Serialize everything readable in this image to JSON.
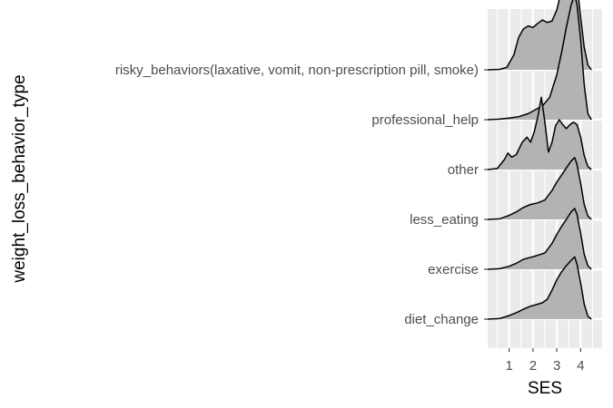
{
  "chart_data": {
    "type": "ridgeline",
    "xlabel": "SES",
    "ylabel": "weight_loss_behavior_type",
    "x_ticks": [
      1,
      2,
      3,
      4
    ],
    "xlim": [
      0.1,
      4.9
    ],
    "grid": true,
    "categories": [
      "diet_change",
      "exercise",
      "less_eating",
      "other",
      "professional_help",
      "risky_behaviors(laxative, vomit, non-prescription pill, smoke)"
    ],
    "series": [
      {
        "category": "diet_change",
        "density": [
          [
            0.1,
            0
          ],
          [
            0.6,
            0.01
          ],
          [
            1.0,
            0.07
          ],
          [
            1.3,
            0.13
          ],
          [
            1.6,
            0.2
          ],
          [
            1.9,
            0.26
          ],
          [
            2.2,
            0.3
          ],
          [
            2.4,
            0.33
          ],
          [
            2.6,
            0.4
          ],
          [
            2.8,
            0.58
          ],
          [
            3.0,
            0.79
          ],
          [
            3.2,
            0.95
          ],
          [
            3.4,
            1.07
          ],
          [
            3.6,
            1.18
          ],
          [
            3.75,
            1.25
          ],
          [
            3.85,
            1.1
          ],
          [
            4.0,
            0.72
          ],
          [
            4.15,
            0.3
          ],
          [
            4.3,
            0.06
          ],
          [
            4.45,
            0
          ]
        ]
      },
      {
        "category": "exercise",
        "density": [
          [
            0.1,
            0
          ],
          [
            0.6,
            0.01
          ],
          [
            1.0,
            0.06
          ],
          [
            1.3,
            0.12
          ],
          [
            1.6,
            0.2
          ],
          [
            1.9,
            0.24
          ],
          [
            2.2,
            0.28
          ],
          [
            2.5,
            0.33
          ],
          [
            2.8,
            0.52
          ],
          [
            3.0,
            0.7
          ],
          [
            3.2,
            0.86
          ],
          [
            3.4,
            1.0
          ],
          [
            3.6,
            1.15
          ],
          [
            3.75,
            1.22
          ],
          [
            3.85,
            1.1
          ],
          [
            4.0,
            0.72
          ],
          [
            4.15,
            0.3
          ],
          [
            4.3,
            0.07
          ],
          [
            4.45,
            0
          ]
        ]
      },
      {
        "category": "less_eating",
        "density": [
          [
            0.1,
            0
          ],
          [
            0.6,
            0.01
          ],
          [
            1.0,
            0.08
          ],
          [
            1.3,
            0.15
          ],
          [
            1.6,
            0.24
          ],
          [
            1.9,
            0.3
          ],
          [
            2.2,
            0.33
          ],
          [
            2.5,
            0.39
          ],
          [
            2.8,
            0.58
          ],
          [
            3.0,
            0.75
          ],
          [
            3.2,
            0.89
          ],
          [
            3.4,
            1.03
          ],
          [
            3.6,
            1.17
          ],
          [
            3.75,
            1.24
          ],
          [
            3.85,
            1.1
          ],
          [
            4.0,
            0.72
          ],
          [
            4.15,
            0.3
          ],
          [
            4.3,
            0.07
          ],
          [
            4.45,
            0
          ]
        ]
      },
      {
        "category": "other",
        "density": [
          [
            0.1,
            0
          ],
          [
            0.5,
            0.02
          ],
          [
            0.8,
            0.2
          ],
          [
            0.95,
            0.33
          ],
          [
            1.1,
            0.25
          ],
          [
            1.3,
            0.3
          ],
          [
            1.55,
            0.55
          ],
          [
            1.75,
            0.65
          ],
          [
            1.9,
            0.55
          ],
          [
            2.05,
            0.75
          ],
          [
            2.2,
            1.05
          ],
          [
            2.35,
            1.45
          ],
          [
            2.5,
            0.95
          ],
          [
            2.65,
            0.35
          ],
          [
            2.8,
            0.55
          ],
          [
            2.95,
            0.88
          ],
          [
            3.1,
            1.0
          ],
          [
            3.25,
            0.9
          ],
          [
            3.4,
            0.82
          ],
          [
            3.55,
            0.9
          ],
          [
            3.7,
            0.95
          ],
          [
            3.85,
            0.9
          ],
          [
            4.0,
            0.65
          ],
          [
            4.15,
            0.28
          ],
          [
            4.3,
            0.06
          ],
          [
            4.45,
            0
          ]
        ]
      },
      {
        "category": "professional_help",
        "density": [
          [
            0.1,
            0
          ],
          [
            0.6,
            0.01
          ],
          [
            1.0,
            0.03
          ],
          [
            1.4,
            0.06
          ],
          [
            1.8,
            0.12
          ],
          [
            2.1,
            0.2
          ],
          [
            2.4,
            0.28
          ],
          [
            2.7,
            0.45
          ],
          [
            3.0,
            0.9
          ],
          [
            3.2,
            1.35
          ],
          [
            3.4,
            1.85
          ],
          [
            3.6,
            2.3
          ],
          [
            3.75,
            2.5
          ],
          [
            3.85,
            2.3
          ],
          [
            4.0,
            1.6
          ],
          [
            4.15,
            0.7
          ],
          [
            4.3,
            0.12
          ],
          [
            4.45,
            0
          ]
        ]
      },
      {
        "category": "risky_behaviors(laxative, vomit, non-prescription pill, smoke)",
        "density": [
          [
            0.1,
            0
          ],
          [
            0.6,
            0.01
          ],
          [
            0.9,
            0.05
          ],
          [
            1.2,
            0.3
          ],
          [
            1.4,
            0.65
          ],
          [
            1.6,
            0.82
          ],
          [
            1.8,
            0.88
          ],
          [
            2.0,
            0.85
          ],
          [
            2.2,
            0.93
          ],
          [
            2.4,
            1.0
          ],
          [
            2.6,
            0.95
          ],
          [
            2.8,
            0.98
          ],
          [
            3.0,
            1.2
          ],
          [
            3.15,
            1.5
          ],
          [
            3.3,
            1.7
          ],
          [
            3.45,
            1.58
          ],
          [
            3.6,
            1.65
          ],
          [
            3.75,
            1.95
          ],
          [
            3.85,
            1.72
          ],
          [
            4.0,
            1.05
          ],
          [
            4.15,
            0.45
          ],
          [
            4.3,
            0.1
          ],
          [
            4.45,
            0
          ]
        ]
      }
    ]
  }
}
